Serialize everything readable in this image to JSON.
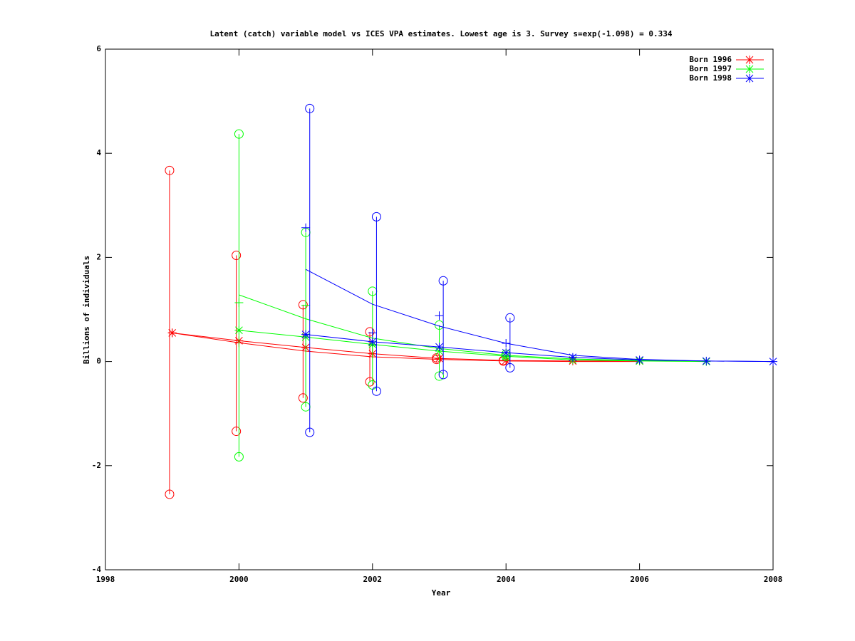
{
  "chart_data": {
    "type": "line",
    "title": "Latent (catch) variable model vs ICES VPA estimates. Lowest age is 3. Survey s=exp(-1.098) = 0.334",
    "x_label": "Year",
    "y_label": "Billions of individuals",
    "x": [
      1999,
      2000,
      2001,
      2002,
      2003,
      2004,
      2005,
      2006,
      2007,
      2008
    ],
    "xlim": [
      1998,
      2008
    ],
    "xticks": [
      1998,
      2000,
      2002,
      2004,
      2006,
      2008
    ],
    "ylim": [
      -4,
      6
    ],
    "yticks": [
      -4,
      -2,
      0,
      2,
      4,
      6
    ],
    "legend": "top-right",
    "series": [
      {
        "name": "Born 1996",
        "color": "#ff0000",
        "values": [
          0.55,
          0.4,
          0.27,
          0.15,
          0.06,
          0.02,
          0.01,
          0.01,
          null,
          null
        ],
        "fit": [
          0.55,
          0.36,
          0.2,
          0.09,
          0.04,
          0.01,
          0.0,
          0.0,
          null,
          null
        ],
        "plus": [
          0.55,
          0.36,
          0.27,
          0.15,
          0.06,
          0.02,
          null,
          null,
          null,
          null
        ],
        "lower": [
          -2.55,
          -1.34,
          -0.7,
          -0.39,
          0.04,
          0.01,
          null,
          null,
          null,
          null
        ],
        "upper": [
          3.67,
          2.04,
          1.09,
          0.57,
          0.07,
          0.02,
          null,
          null,
          null,
          null
        ]
      },
      {
        "name": "Born 1997",
        "color": "#00ff00",
        "values": [
          null,
          0.6,
          0.47,
          0.33,
          0.2,
          0.1,
          0.03,
          0.01,
          0.0,
          null
        ],
        "fit": [
          null,
          1.28,
          0.82,
          0.45,
          0.25,
          0.12,
          0.05,
          0.02,
          0.01,
          null
        ],
        "plus": [
          null,
          1.13,
          1.08,
          0.3,
          0.2,
          0.1,
          null,
          null,
          null,
          null
        ],
        "lower": [
          null,
          -1.83,
          -0.87,
          -0.45,
          -0.28,
          0.1,
          null,
          null,
          null,
          null
        ],
        "upper": [
          null,
          4.37,
          2.48,
          1.35,
          0.7,
          0.14,
          null,
          null,
          null,
          null
        ]
      },
      {
        "name": "Born 1998",
        "color": "#0000ff",
        "values": [
          null,
          null,
          0.52,
          0.38,
          0.28,
          0.17,
          0.08,
          0.03,
          0.01,
          0.0
        ],
        "fit": [
          null,
          null,
          1.77,
          1.1,
          0.68,
          0.35,
          0.12,
          0.04,
          0.01,
          0.0
        ],
        "plus": [
          null,
          null,
          2.57,
          0.55,
          0.88,
          0.35,
          null,
          null,
          null,
          null
        ],
        "lower": [
          null,
          null,
          -1.36,
          -0.57,
          -0.25,
          -0.12,
          null,
          null,
          null,
          null
        ],
        "upper": [
          null,
          null,
          4.86,
          2.78,
          1.55,
          0.84,
          null,
          null,
          null,
          null
        ]
      }
    ]
  }
}
